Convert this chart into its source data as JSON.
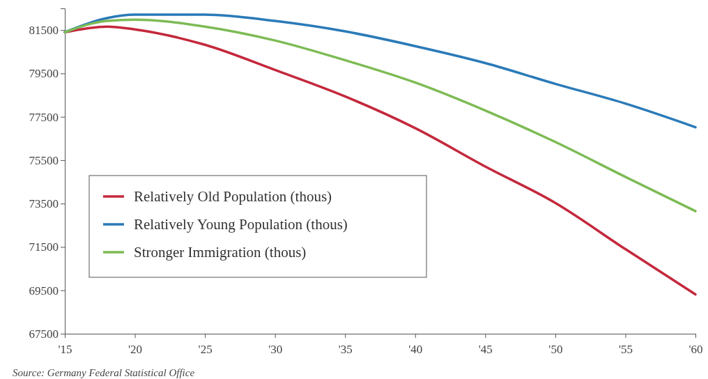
{
  "chart_data": {
    "type": "line",
    "x": [
      2015,
      2018,
      2020,
      2025,
      2030,
      2035,
      2040,
      2045,
      2050,
      2055,
      2060
    ],
    "series": [
      {
        "name": "Relatively Old Population (thous)",
        "color": "#c4283c",
        "values": [
          81400,
          81660,
          81530,
          80820,
          79660,
          78440,
          76980,
          75210,
          73530,
          71400,
          69310
        ]
      },
      {
        "name": "Relatively Young Population (thous)",
        "color": "#2a7ab8",
        "values": [
          81400,
          82050,
          82210,
          82210,
          81920,
          81440,
          80760,
          79980,
          79020,
          78110,
          77020
        ]
      },
      {
        "name": "Stronger Immigration (thous)",
        "color": "#7dbb55",
        "values": [
          81400,
          81920,
          81980,
          81660,
          81020,
          80110,
          79080,
          77790,
          76340,
          74730,
          73150
        ]
      }
    ],
    "xlim": [
      2015,
      2060
    ],
    "xticks": [
      {
        "value": 2015,
        "label": "'15"
      },
      {
        "value": 2020,
        "label": "'20"
      },
      {
        "value": 2025,
        "label": "'25"
      },
      {
        "value": 2030,
        "label": "'30"
      },
      {
        "value": 2035,
        "label": "'35"
      },
      {
        "value": 2040,
        "label": "'40"
      },
      {
        "value": 2045,
        "label": "'45"
      },
      {
        "value": 2050,
        "label": "'50"
      },
      {
        "value": 2055,
        "label": "'55"
      },
      {
        "value": 2060,
        "label": "'60"
      }
    ],
    "ylim": [
      67500,
      82500
    ],
    "yticks": [
      67500,
      69500,
      71500,
      73500,
      75500,
      77500,
      79500,
      81500
    ],
    "grid": false,
    "legend": "left",
    "marker": "none",
    "line_style": "solid",
    "annotations": [
      "Source: Germany Federal Statistical Office"
    ]
  }
}
